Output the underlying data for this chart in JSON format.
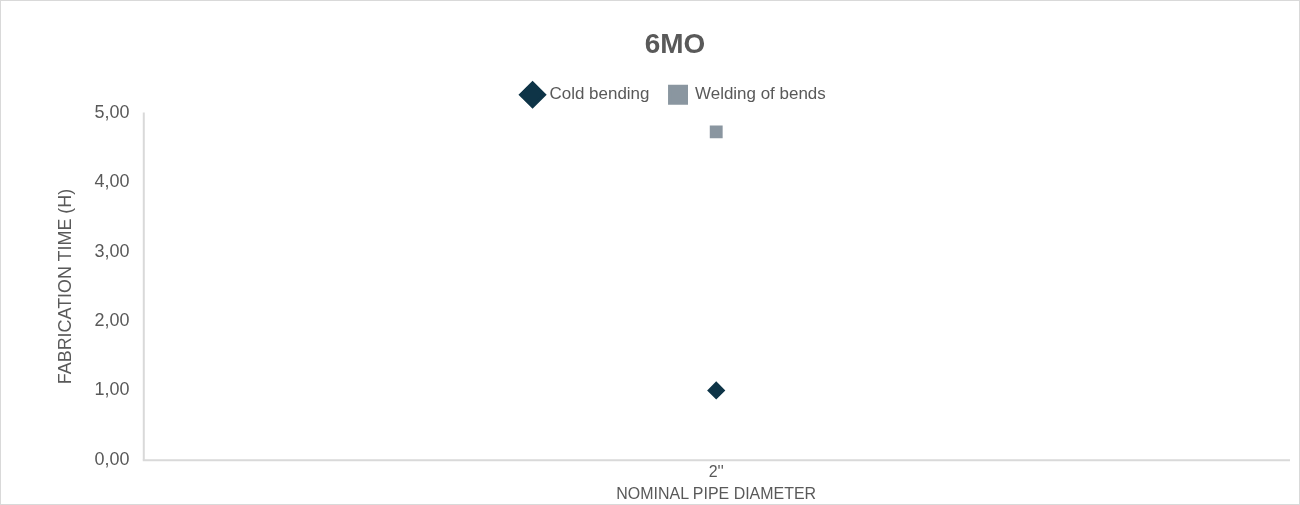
{
  "chart_data": {
    "type": "line",
    "title": "6MO",
    "xlabel": "NOMINAL PIPE DIAMETER",
    "ylabel": "FABRICATION TIME (H)",
    "categories": [
      "2''"
    ],
    "series": [
      {
        "name": "Cold bending",
        "color": "#0e3447",
        "values": [
          1.0
        ],
        "marker": "diamond"
      },
      {
        "name": "Welding of bends",
        "color": "#8a96a0",
        "values": [
          4.73
        ],
        "marker": "square"
      }
    ],
    "ylim": [
      0,
      5
    ],
    "yticks": [
      {
        "value": 0,
        "label": "0,00"
      },
      {
        "value": 1,
        "label": "1,00"
      },
      {
        "value": 2,
        "label": "2,00"
      },
      {
        "value": 3,
        "label": "3,00"
      },
      {
        "value": 4,
        "label": "4,00"
      },
      {
        "value": 5,
        "label": "5,00"
      }
    ],
    "grid": false,
    "legend": "top"
  }
}
